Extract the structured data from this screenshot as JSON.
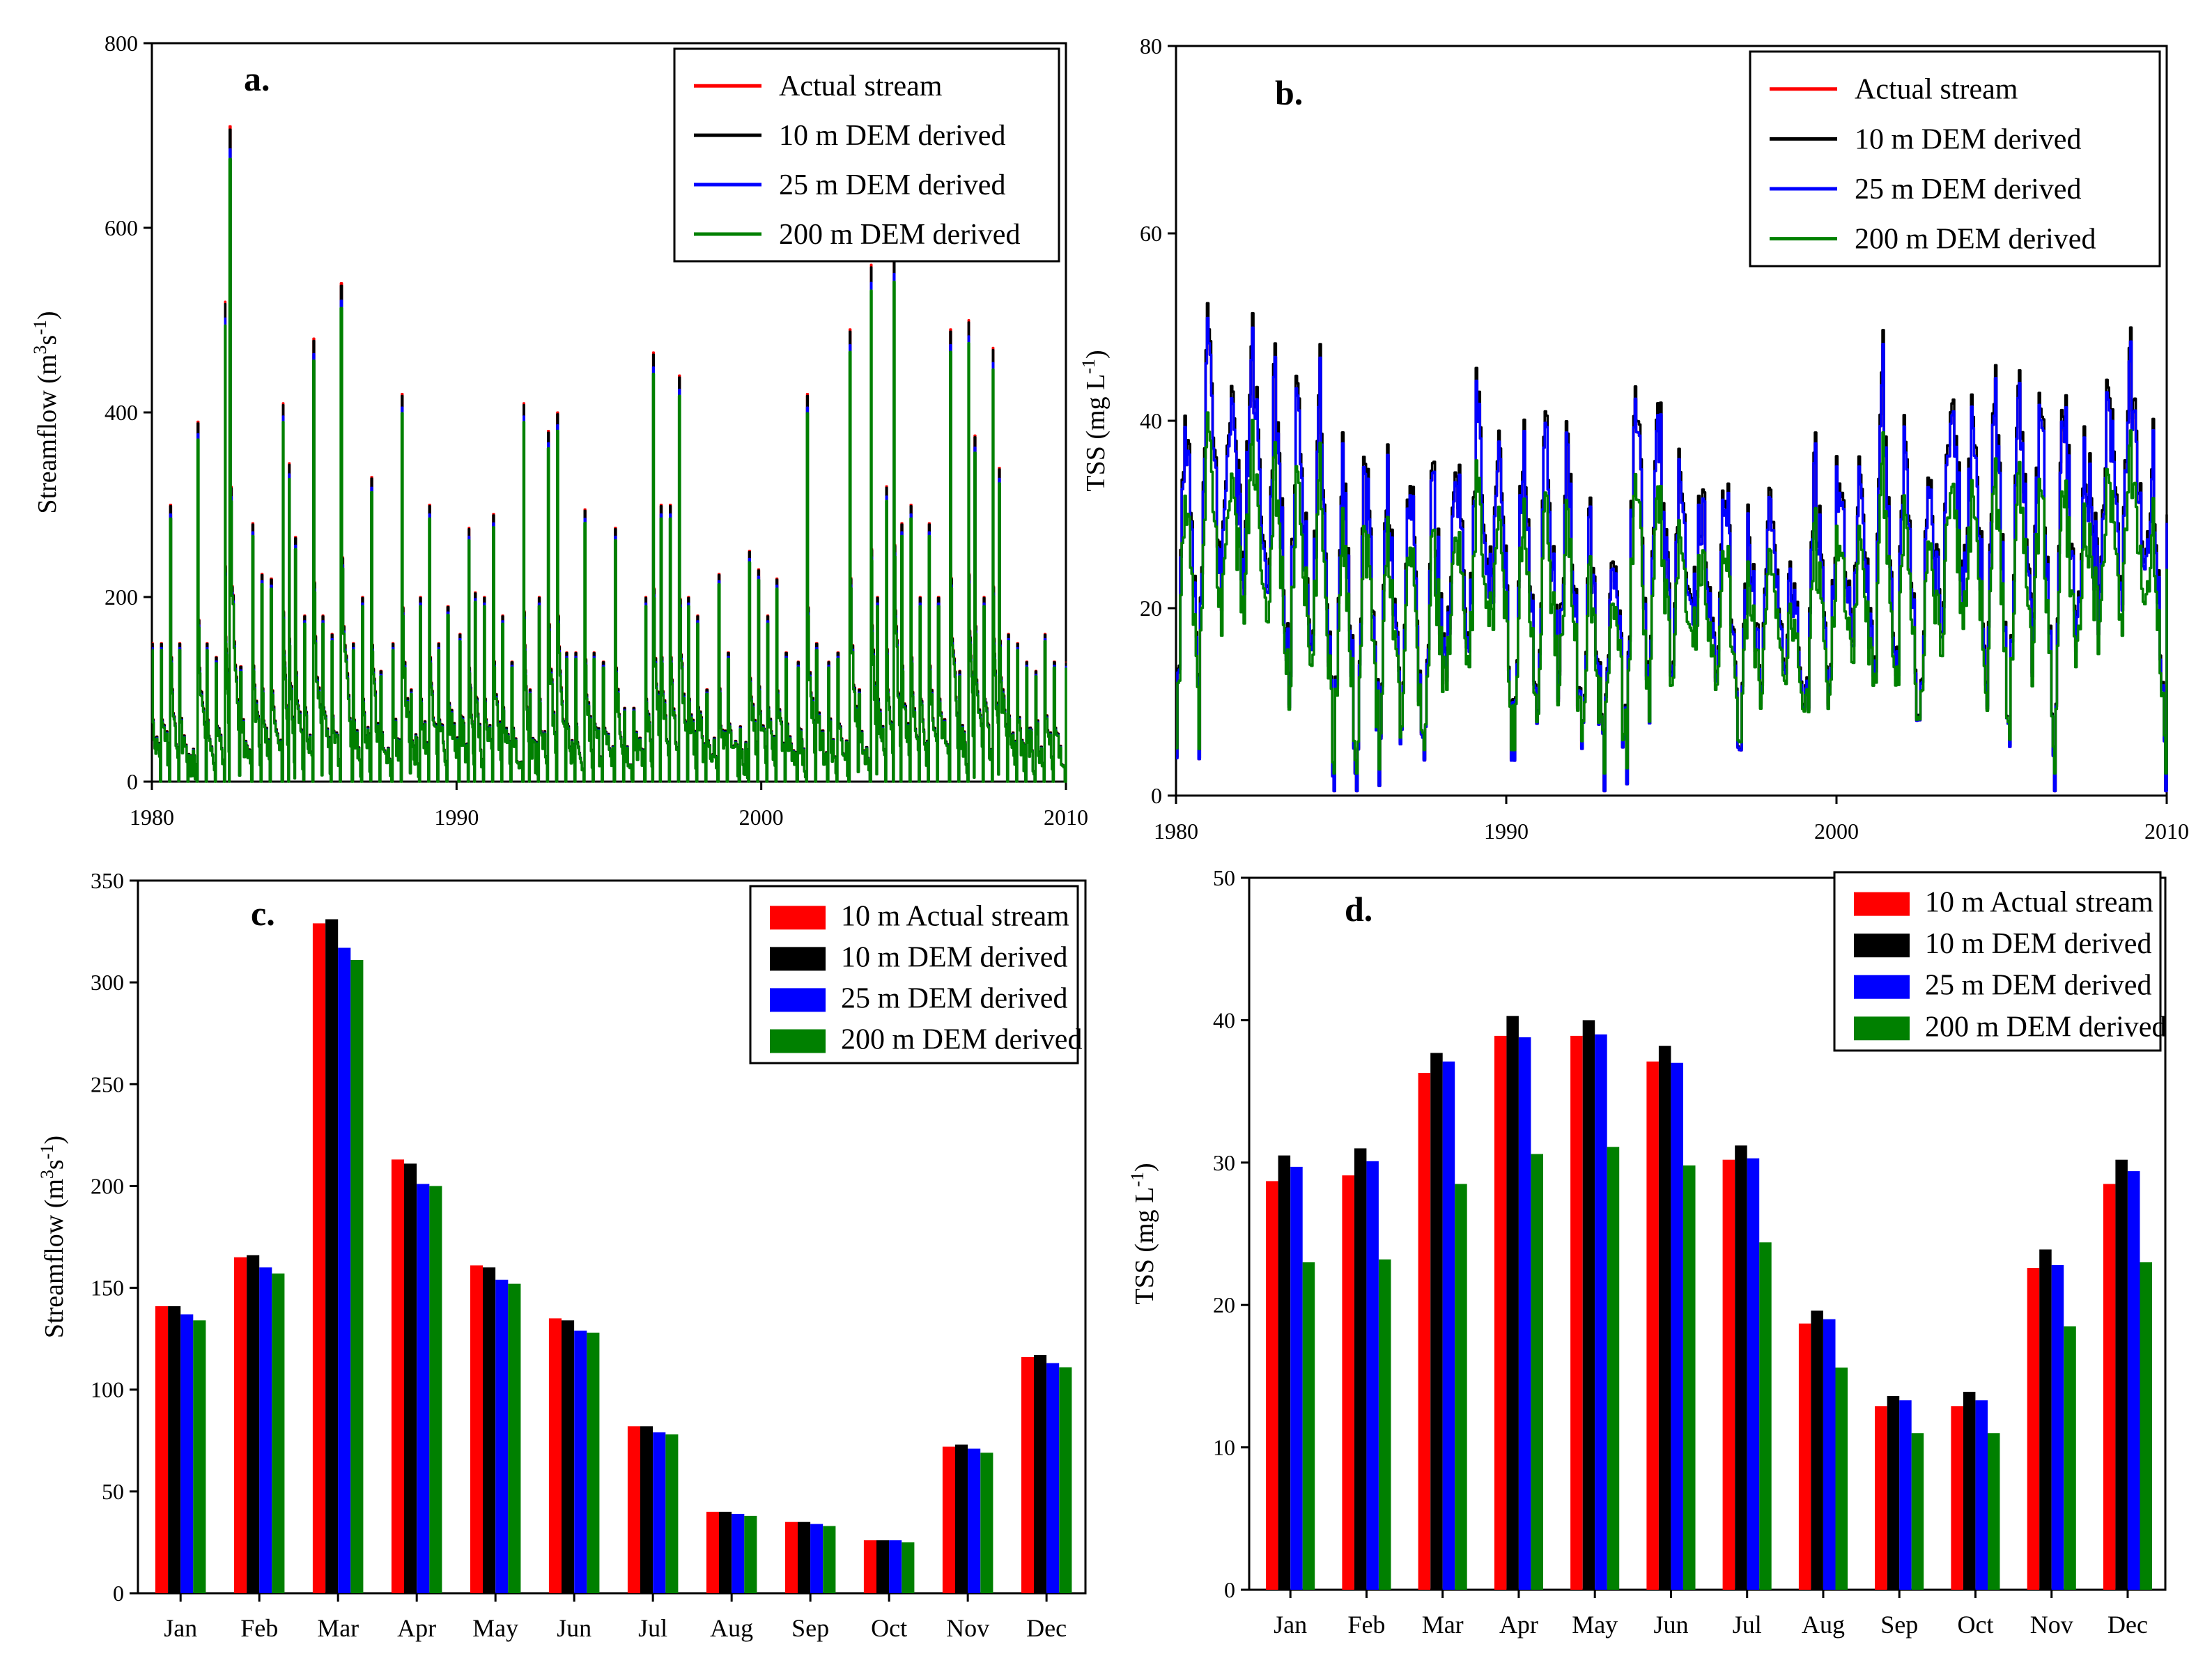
{
  "colors": {
    "actual": "#ff0000",
    "dem10": "#000000",
    "dem25": "#0000ff",
    "dem200": "#008000"
  },
  "chart_data": [
    {
      "panel": "a.",
      "type": "line",
      "xlabel": "",
      "ylabel": "Streamflow (m3s-1)",
      "ylabel_main": "Streamflow (m",
      "ylabel_sup1": "3",
      "ylabel_mid": "s",
      "ylabel_sup2": "-1",
      "ylabel_end": ")",
      "xlim": [
        1980,
        2010
      ],
      "ylim": [
        0,
        800
      ],
      "xticks": [
        "1980",
        "1990",
        "2000",
        "2010"
      ],
      "yticks": [
        "0",
        "200",
        "400",
        "600",
        "800"
      ],
      "legend_position": "top-right",
      "legend": [
        "Actual stream",
        "10 m DEM derived",
        "25 m DEM derived",
        "200 m DEM derived"
      ],
      "series_names": [
        "Actual stream",
        "10 m DEM derived",
        "25 m DEM derived",
        "200 m DEM derived"
      ],
      "peaks": [
        [
          1980.0,
          150
        ],
        [
          1980.3,
          150
        ],
        [
          1980.6,
          300
        ],
        [
          1980.9,
          150
        ],
        [
          1981.2,
          30
        ],
        [
          1981.5,
          390
        ],
        [
          1981.8,
          150
        ],
        [
          1982.1,
          135
        ],
        [
          1982.4,
          520
        ],
        [
          1982.55,
          710
        ],
        [
          1982.9,
          125
        ],
        [
          1983.3,
          280
        ],
        [
          1983.6,
          225
        ],
        [
          1983.9,
          220
        ],
        [
          1984.3,
          410
        ],
        [
          1984.5,
          345
        ],
        [
          1984.7,
          265
        ],
        [
          1985.0,
          180
        ],
        [
          1985.3,
          480
        ],
        [
          1985.6,
          180
        ],
        [
          1985.9,
          160
        ],
        [
          1986.2,
          540
        ],
        [
          1986.6,
          150
        ],
        [
          1986.9,
          200
        ],
        [
          1987.2,
          330
        ],
        [
          1987.5,
          120
        ],
        [
          1987.9,
          150
        ],
        [
          1988.2,
          420
        ],
        [
          1988.5,
          100
        ],
        [
          1988.8,
          200
        ],
        [
          1989.1,
          300
        ],
        [
          1989.4,
          150
        ],
        [
          1989.7,
          190
        ],
        [
          1990.1,
          160
        ],
        [
          1990.4,
          275
        ],
        [
          1990.6,
          205
        ],
        [
          1990.9,
          200
        ],
        [
          1991.2,
          290
        ],
        [
          1991.5,
          180
        ],
        [
          1991.8,
          130
        ],
        [
          1992.2,
          410
        ],
        [
          1992.4,
          100
        ],
        [
          1992.7,
          200
        ],
        [
          1993.0,
          380
        ],
        [
          1993.3,
          400
        ],
        [
          1993.6,
          140
        ],
        [
          1993.9,
          140
        ],
        [
          1994.2,
          295
        ],
        [
          1994.5,
          140
        ],
        [
          1994.8,
          130
        ],
        [
          1995.2,
          275
        ],
        [
          1995.5,
          80
        ],
        [
          1995.8,
          80
        ],
        [
          1996.2,
          200
        ],
        [
          1996.45,
          465
        ],
        [
          1996.7,
          300
        ],
        [
          1997.0,
          300
        ],
        [
          1997.3,
          440
        ],
        [
          1997.6,
          200
        ],
        [
          1997.9,
          180
        ],
        [
          1998.2,
          100
        ],
        [
          1998.6,
          225
        ],
        [
          1998.9,
          140
        ],
        [
          1999.3,
          60
        ],
        [
          1999.6,
          250
        ],
        [
          1999.9,
          230
        ],
        [
          2000.2,
          180
        ],
        [
          2000.5,
          220
        ],
        [
          2000.8,
          140
        ],
        [
          2001.2,
          130
        ],
        [
          2001.5,
          420
        ],
        [
          2001.8,
          150
        ],
        [
          2002.2,
          130
        ],
        [
          2002.5,
          140
        ],
        [
          2002.9,
          490
        ],
        [
          2003.2,
          100
        ],
        [
          2003.6,
          560
        ],
        [
          2003.8,
          200
        ],
        [
          2004.1,
          320
        ],
        [
          2004.35,
          570
        ],
        [
          2004.6,
          280
        ],
        [
          2004.9,
          300
        ],
        [
          2005.2,
          200
        ],
        [
          2005.5,
          280
        ],
        [
          2005.8,
          200
        ],
        [
          2006.2,
          490
        ],
        [
          2006.5,
          120
        ],
        [
          2006.8,
          500
        ],
        [
          2007.0,
          375
        ],
        [
          2007.3,
          200
        ],
        [
          2007.6,
          470
        ],
        [
          2007.8,
          340
        ],
        [
          2008.1,
          160
        ],
        [
          2008.4,
          150
        ],
        [
          2008.7,
          130
        ],
        [
          2009.0,
          120
        ],
        [
          2009.3,
          160
        ],
        [
          2009.6,
          130
        ]
      ]
    },
    {
      "panel": "b.",
      "type": "line",
      "xlabel": "",
      "ylabel": "TSS (mg L-1)",
      "ylabel_main": "TSS (mg L",
      "ylabel_sup1": "-1",
      "ylabel_end": ")",
      "xlim": [
        1980,
        2010
      ],
      "ylim": [
        0,
        80
      ],
      "xticks": [
        "1980",
        "1990",
        "2000",
        "2010"
      ],
      "yticks": [
        "0",
        "20",
        "40",
        "60",
        "80"
      ],
      "legend_position": "top-right",
      "legend": [
        "Actual stream",
        "10 m DEM derived",
        "25 m DEM derived",
        "200 m DEM derived"
      ],
      "series_names": [
        "Actual stream",
        "10 m DEM derived",
        "25 m DEM derived",
        "200 m DEM derived"
      ],
      "cycle_peaks": [
        44,
        51,
        45,
        50,
        47,
        47,
        45,
        40,
        38,
        35,
        38,
        35,
        40,
        44,
        37,
        40,
        40,
        41,
        30,
        30,
        49,
        45,
        35,
        34,
        36,
        27,
        34,
        24,
        35,
        37,
        35,
        47,
        44,
        35,
        45,
        40,
        45,
        46,
        46,
        45,
        38,
        44,
        47,
        37
      ],
      "cycle_troughs": [
        1,
        9,
        22,
        24,
        18,
        10,
        12,
        2,
        1,
        6,
        8,
        1,
        10,
        15,
        20,
        2,
        8,
        12,
        3,
        1,
        2,
        8,
        12,
        20,
        10,
        5,
        12,
        15,
        8,
        12,
        14,
        10,
        12,
        4,
        18,
        22,
        14,
        6,
        15,
        1,
        18,
        20,
        22,
        25
      ]
    },
    {
      "panel": "c.",
      "type": "bar",
      "ylabel": "Streamflow (m3s-1)",
      "ylabel_main": "Streamflow (m",
      "ylabel_sup1": "3",
      "ylabel_mid": "s",
      "ylabel_sup2": "-1",
      "ylabel_end": ")",
      "ylim": [
        0,
        350
      ],
      "yticks": [
        "0",
        "50",
        "100",
        "150",
        "200",
        "250",
        "300",
        "350"
      ],
      "categories": [
        "Jan",
        "Feb",
        "Mar",
        "Apr",
        "May",
        "Jun",
        "Jul",
        "Aug",
        "Sep",
        "Oct",
        "Nov",
        "Dec"
      ],
      "legend_position": "top-right",
      "legend": [
        "10 m Actual stream",
        "10 m DEM derived",
        "25 m DEM derived",
        "200 m DEM derived"
      ],
      "series": [
        {
          "name": "10 m Actual stream",
          "values": [
            141,
            165,
            329,
            213,
            161,
            135,
            82,
            40,
            35,
            26,
            72,
            116
          ]
        },
        {
          "name": "10 m DEM derived",
          "values": [
            141,
            166,
            331,
            211,
            160,
            134,
            82,
            40,
            35,
            26,
            73,
            117
          ]
        },
        {
          "name": "25 m DEM derived",
          "values": [
            137,
            160,
            317,
            201,
            154,
            129,
            79,
            39,
            34,
            26,
            71,
            113
          ]
        },
        {
          "name": "200 m DEM derived",
          "values": [
            134,
            157,
            311,
            200,
            152,
            128,
            78,
            38,
            33,
            25,
            69,
            111
          ]
        }
      ]
    },
    {
      "panel": "d.",
      "type": "bar",
      "ylabel": "TSS (mg L-1)",
      "ylabel_main": "TSS (mg L",
      "ylabel_sup1": "-1",
      "ylabel_end": ")",
      "ylim": [
        0,
        50
      ],
      "yticks": [
        "0",
        "10",
        "20",
        "30",
        "40",
        "50"
      ],
      "categories": [
        "Jan",
        "Feb",
        "Mar",
        "Apr",
        "May",
        "Jun",
        "Jul",
        "Aug",
        "Sep",
        "Oct",
        "Nov",
        "Dec"
      ],
      "legend_position": "top-right",
      "legend": [
        "10 m Actual stream",
        "10 m DEM derived",
        "25 m DEM derived",
        "200 m DEM derived"
      ],
      "series": [
        {
          "name": "10 m Actual stream",
          "values": [
            28.7,
            29.1,
            36.3,
            38.9,
            38.9,
            37.1,
            30.2,
            18.7,
            12.9,
            12.9,
            22.6,
            28.5
          ]
        },
        {
          "name": "10 m DEM derived",
          "values": [
            30.5,
            31.0,
            37.7,
            40.3,
            40.0,
            38.2,
            31.2,
            19.6,
            13.6,
            13.9,
            23.9,
            30.2
          ]
        },
        {
          "name": "25 m DEM derived",
          "values": [
            29.7,
            30.1,
            37.1,
            38.8,
            39.0,
            37.0,
            30.3,
            19.0,
            13.3,
            13.3,
            22.8,
            29.4
          ]
        },
        {
          "name": "200 m DEM derived",
          "values": [
            23.0,
            23.2,
            28.5,
            30.6,
            31.1,
            29.8,
            24.4,
            15.6,
            11.0,
            11.0,
            18.5,
            23.0
          ]
        }
      ]
    }
  ]
}
